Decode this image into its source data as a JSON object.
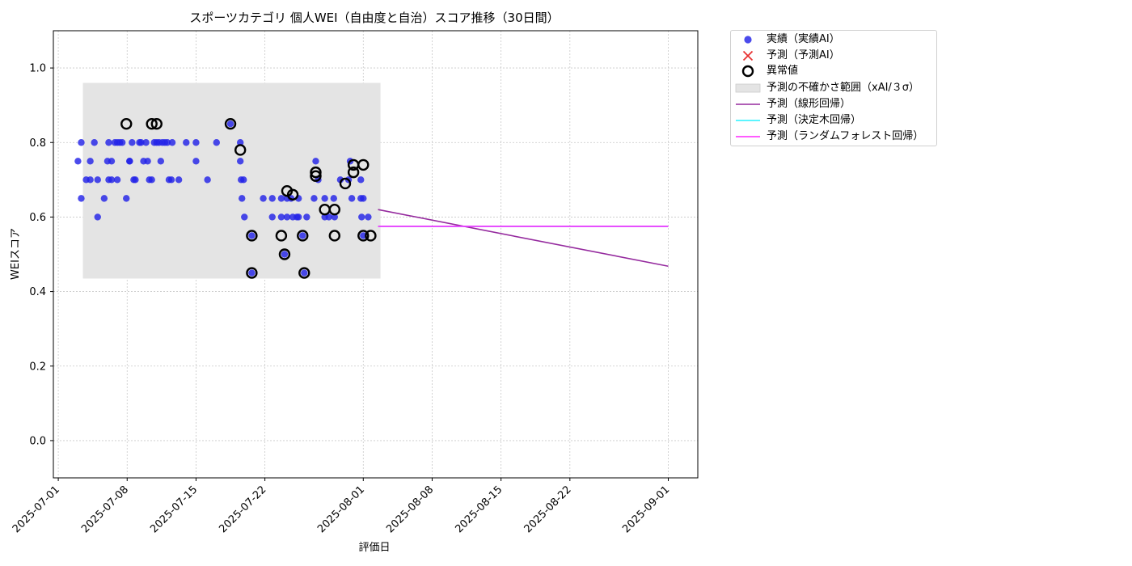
{
  "chart_data": {
    "type": "scatter",
    "title": "スポーツカテゴリ 個人WEI（自由度と自治）スコア推移（30日間）",
    "xlabel": "評価日",
    "ylabel": "WEIスコア",
    "xlim": [
      "2025-06-30T12:00",
      "2025-09-04"
    ],
    "ylim": [
      -0.1,
      1.1
    ],
    "x_ticks": [
      "2025-07-01",
      "2025-07-08",
      "2025-07-15",
      "2025-07-22",
      "2025-08-01",
      "2025-08-08",
      "2025-08-15",
      "2025-08-22",
      "2025-09-01"
    ],
    "y_ticks": [
      0.0,
      0.2,
      0.4,
      0.6,
      0.8,
      1.0
    ],
    "y_tick_labels": [
      "0.0",
      "0.2",
      "0.4",
      "0.6",
      "0.8",
      "1.0"
    ],
    "grid": true,
    "legend_position": "outside-right",
    "uncertainty_band": {
      "x_start": "2025-07-03T12:00",
      "x_end": "2025-08-02T18:00",
      "y_low": 0.435,
      "y_high": 0.96
    },
    "series": [
      {
        "name": "実績（実績AI）",
        "kind": "scatter",
        "color": "#2323e8",
        "points": [
          [
            "2025-07-03T00:00",
            0.75
          ],
          [
            "2025-07-03T08:00",
            0.8
          ],
          [
            "2025-07-03T08:00",
            0.65
          ],
          [
            "2025-07-03T20:00",
            0.7
          ],
          [
            "2025-07-04T06:00",
            0.75
          ],
          [
            "2025-07-04T06:00",
            0.7
          ],
          [
            "2025-07-04T16:00",
            0.8
          ],
          [
            "2025-07-05T00:00",
            0.6
          ],
          [
            "2025-07-05T00:00",
            0.7
          ],
          [
            "2025-07-05T16:00",
            0.65
          ],
          [
            "2025-07-06T00:00",
            0.75
          ],
          [
            "2025-07-06T03:00",
            0.8
          ],
          [
            "2025-07-06T03:00",
            0.7
          ],
          [
            "2025-07-06T10:00",
            0.7
          ],
          [
            "2025-07-06T10:00",
            0.75
          ],
          [
            "2025-07-06T18:00",
            0.8
          ],
          [
            "2025-07-07T00:00",
            0.8
          ],
          [
            "2025-07-07T00:00",
            0.7
          ],
          [
            "2025-07-07T06:00",
            0.8
          ],
          [
            "2025-07-07T12:00",
            0.8
          ],
          [
            "2025-07-07T22:00",
            0.65
          ],
          [
            "2025-07-08T06:00",
            0.75
          ],
          [
            "2025-07-08T06:00",
            0.75
          ],
          [
            "2025-07-08T12:00",
            0.8
          ],
          [
            "2025-07-08T16:00",
            0.7
          ],
          [
            "2025-07-08T20:00",
            0.7
          ],
          [
            "2025-07-09T06:00",
            0.8
          ],
          [
            "2025-07-09T10:00",
            0.8
          ],
          [
            "2025-07-09T16:00",
            0.75
          ],
          [
            "2025-07-09T22:00",
            0.8
          ],
          [
            "2025-07-10T02:00",
            0.75
          ],
          [
            "2025-07-10T06:00",
            0.7
          ],
          [
            "2025-07-10T12:00",
            0.7
          ],
          [
            "2025-07-10T18:00",
            0.8
          ],
          [
            "2025-07-11T00:00",
            0.8
          ],
          [
            "2025-07-11T06:00",
            0.8
          ],
          [
            "2025-07-11T10:00",
            0.75
          ],
          [
            "2025-07-11T14:00",
            0.8
          ],
          [
            "2025-07-11T20:00",
            0.8
          ],
          [
            "2025-07-12T02:00",
            0.8
          ],
          [
            "2025-07-12T06:00",
            0.7
          ],
          [
            "2025-07-12T12:00",
            0.7
          ],
          [
            "2025-07-12T14:00",
            0.8
          ],
          [
            "2025-07-13T06:00",
            0.7
          ],
          [
            "2025-07-14T00:00",
            0.8
          ],
          [
            "2025-07-15T00:00",
            0.8
          ],
          [
            "2025-07-15T00:00",
            0.75
          ],
          [
            "2025-07-16T04:00",
            0.7
          ],
          [
            "2025-07-17T02:00",
            0.8
          ],
          [
            "2025-07-18T12:00",
            0.85
          ],
          [
            "2025-07-19T12:00",
            0.8
          ],
          [
            "2025-07-19T12:00",
            0.75
          ],
          [
            "2025-07-19T14:00",
            0.7
          ],
          [
            "2025-07-19T16:00",
            0.65
          ],
          [
            "2025-07-19T20:00",
            0.7
          ],
          [
            "2025-07-19T22:00",
            0.6
          ],
          [
            "2025-07-20T16:00",
            0.55
          ],
          [
            "2025-07-20T16:00",
            0.45
          ],
          [
            "2025-07-21T20:00",
            0.65
          ],
          [
            "2025-07-22T18:00",
            0.65
          ],
          [
            "2025-07-22T18:00",
            0.6
          ],
          [
            "2025-07-23T16:00",
            0.6
          ],
          [
            "2025-07-23T16:00",
            0.65
          ],
          [
            "2025-07-24T00:00",
            0.5
          ],
          [
            "2025-07-24T06:00",
            0.6
          ],
          [
            "2025-07-24T06:00",
            0.65
          ],
          [
            "2025-07-24T16:00",
            0.65
          ],
          [
            "2025-07-24T20:00",
            0.6
          ],
          [
            "2025-07-25T06:00",
            0.6
          ],
          [
            "2025-07-25T10:00",
            0.65
          ],
          [
            "2025-07-25T10:00",
            0.6
          ],
          [
            "2025-07-25T20:00",
            0.55
          ],
          [
            "2025-07-26T00:00",
            0.45
          ],
          [
            "2025-07-26T06:00",
            0.6
          ],
          [
            "2025-07-27T00:00",
            0.65
          ],
          [
            "2025-07-27T04:00",
            0.75
          ],
          [
            "2025-07-27T10:00",
            0.7
          ],
          [
            "2025-07-28T02:00",
            0.65
          ],
          [
            "2025-07-28T02:00",
            0.6
          ],
          [
            "2025-07-28T12:00",
            0.6
          ],
          [
            "2025-07-29T00:00",
            0.65
          ],
          [
            "2025-07-29T02:00",
            0.6
          ],
          [
            "2025-07-29T16:00",
            0.7
          ],
          [
            "2025-07-30T12:00",
            0.7
          ],
          [
            "2025-07-30T16:00",
            0.75
          ],
          [
            "2025-07-30T20:00",
            0.65
          ],
          [
            "2025-07-31T18:00",
            0.7
          ],
          [
            "2025-07-31T18:00",
            0.65
          ],
          [
            "2025-07-31T20:00",
            0.6
          ],
          [
            "2025-08-01T00:00",
            0.65
          ],
          [
            "2025-08-01T00:00",
            0.55
          ],
          [
            "2025-08-01T12:00",
            0.6
          ]
        ]
      },
      {
        "name": "予測（予測AI）",
        "kind": "scatter-x",
        "color": "#e83232",
        "points": []
      },
      {
        "name": "異常値",
        "kind": "outlier",
        "color": "#000000",
        "points": [
          [
            "2025-07-07T22:00",
            0.85
          ],
          [
            "2025-07-10T12:00",
            0.85
          ],
          [
            "2025-07-11T00:00",
            0.85
          ],
          [
            "2025-07-18T12:00",
            0.85
          ],
          [
            "2025-07-19T12:00",
            0.78
          ],
          [
            "2025-07-20T16:00",
            0.55
          ],
          [
            "2025-07-20T16:00",
            0.45
          ],
          [
            "2025-07-23T16:00",
            0.55
          ],
          [
            "2025-07-24T00:00",
            0.5
          ],
          [
            "2025-07-24T06:00",
            0.67
          ],
          [
            "2025-07-24T20:00",
            0.66
          ],
          [
            "2025-07-25T20:00",
            0.55
          ],
          [
            "2025-07-26T00:00",
            0.45
          ],
          [
            "2025-07-27T04:00",
            0.72
          ],
          [
            "2025-07-27T04:00",
            0.71
          ],
          [
            "2025-07-28T02:00",
            0.62
          ],
          [
            "2025-07-29T02:00",
            0.55
          ],
          [
            "2025-07-29T02:00",
            0.62
          ],
          [
            "2025-07-30T04:00",
            0.69
          ],
          [
            "2025-07-31T00:00",
            0.72
          ],
          [
            "2025-07-31T00:00",
            0.74
          ],
          [
            "2025-08-01T00:00",
            0.74
          ],
          [
            "2025-08-01T00:00",
            0.55
          ],
          [
            "2025-08-01T18:00",
            0.55
          ]
        ]
      },
      {
        "name": "予測の不確かさ範囲（xAI/３σ）",
        "kind": "band",
        "color": "#e4e4e4"
      },
      {
        "name": "予測（線形回帰）",
        "kind": "line",
        "color": "#952a9e",
        "points": [
          [
            "2025-08-02T12:00",
            0.62
          ],
          [
            "2025-09-01",
            0.468
          ]
        ]
      },
      {
        "name": "予測（決定木回帰）",
        "kind": "line",
        "color": "#26f2ff",
        "points": [
          [
            "2025-08-02T12:00",
            0.575
          ],
          [
            "2025-09-01",
            0.575
          ]
        ]
      },
      {
        "name": "予測（ランダムフォレスト回帰）",
        "kind": "line",
        "color": "#ff26ff",
        "points": [
          [
            "2025-08-02T12:00",
            0.575
          ],
          [
            "2025-09-01",
            0.575
          ]
        ]
      }
    ]
  }
}
